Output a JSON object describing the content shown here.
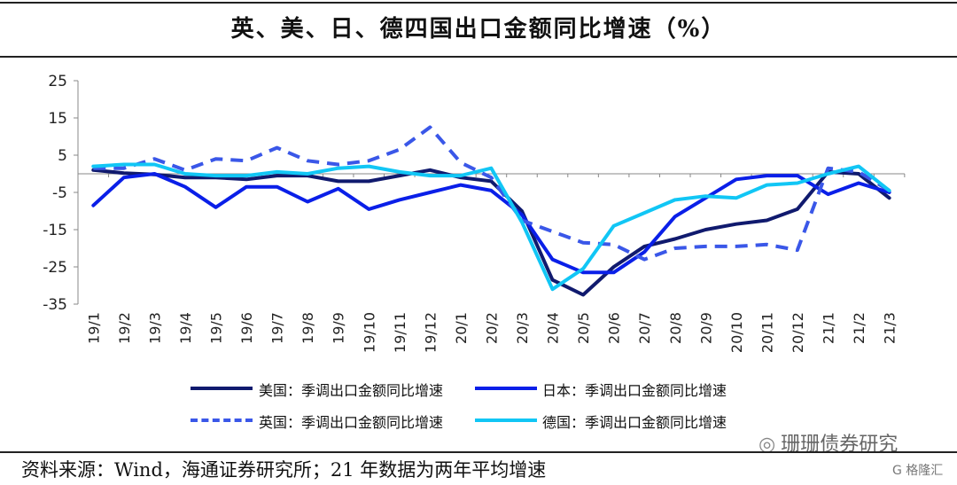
{
  "page": {
    "title": "英、美、日、德四国出口金额同比增速（%）",
    "source": "资料来源：Wind，海通证券研究所；21 年数据为两年平均增速",
    "watermark": "珊珊债券研究",
    "watermark_icon": "wechat-icon",
    "watermark2": "G 格隆汇"
  },
  "chart_data": {
    "type": "line",
    "categories": [
      "19/1",
      "19/2",
      "19/3",
      "19/4",
      "19/5",
      "19/6",
      "19/7",
      "19/8",
      "19/9",
      "19/10",
      "19/11",
      "19/12",
      "20/1",
      "20/2",
      "20/3",
      "20/4",
      "20/5",
      "20/6",
      "20/7",
      "20/8",
      "20/9",
      "20/10",
      "20/11",
      "20/12",
      "21/1",
      "21/2",
      "21/3"
    ],
    "ylim": [
      -35,
      25
    ],
    "yticks": [
      "25",
      "15",
      "5",
      "-5",
      "-15",
      "-25",
      "-35"
    ],
    "grid": false,
    "legend_position": "bottom",
    "series": [
      {
        "name": "美国：季调出口金额同比增速",
        "color": "#101a6e",
        "dash": "solid",
        "values": [
          1.0,
          0.2,
          -0.2,
          -1.0,
          -1.0,
          -1.5,
          -0.5,
          -0.5,
          -2.0,
          -2.0,
          -0.5,
          1.0,
          -1.0,
          -2.0,
          -10.0,
          -28.5,
          -32.5,
          -25.0,
          -19.5,
          -17.5,
          -15.0,
          -13.5,
          -12.5,
          -9.5,
          0.5,
          0.0,
          -6.5
        ]
      },
      {
        "name": "日本：季调出口金额同比增速",
        "color": "#0a1fe8",
        "dash": "solid",
        "values": [
          -8.5,
          -1.0,
          0.0,
          -3.5,
          -9.0,
          -3.5,
          -3.5,
          -7.5,
          -4.0,
          -9.5,
          -7.0,
          -5.0,
          -3.0,
          -4.5,
          -11.0,
          -23.0,
          -26.5,
          -26.5,
          -21.0,
          -11.5,
          -6.5,
          -1.5,
          -0.5,
          -0.5,
          -5.5,
          -2.5,
          -5.0
        ]
      },
      {
        "name": "英国：季调出口金额同比增速",
        "color": "#3a57e8",
        "dash": "dashed",
        "values": [
          1.5,
          1.5,
          4.0,
          1.0,
          4.0,
          3.5,
          7.0,
          3.5,
          2.5,
          3.5,
          6.5,
          12.5,
          3.0,
          -1.0,
          -12.5,
          -15.5,
          -18.5,
          -19.0,
          -23.0,
          -20.0,
          -19.5,
          -19.5,
          -19.0,
          -20.5,
          1.5,
          0.5,
          -4.5
        ]
      },
      {
        "name": "德国：季调出口金额同比增速",
        "color": "#11c6f5",
        "dash": "solid",
        "values": [
          2.0,
          2.5,
          2.5,
          0.0,
          -0.5,
          -0.5,
          0.5,
          0.0,
          1.5,
          2.0,
          0.5,
          -0.5,
          -0.5,
          1.5,
          -13.0,
          -31.0,
          -25.5,
          -14.0,
          -10.5,
          -7.0,
          -6.0,
          -6.5,
          -3.0,
          -2.5,
          0.0,
          2.0,
          -4.5
        ]
      }
    ]
  }
}
